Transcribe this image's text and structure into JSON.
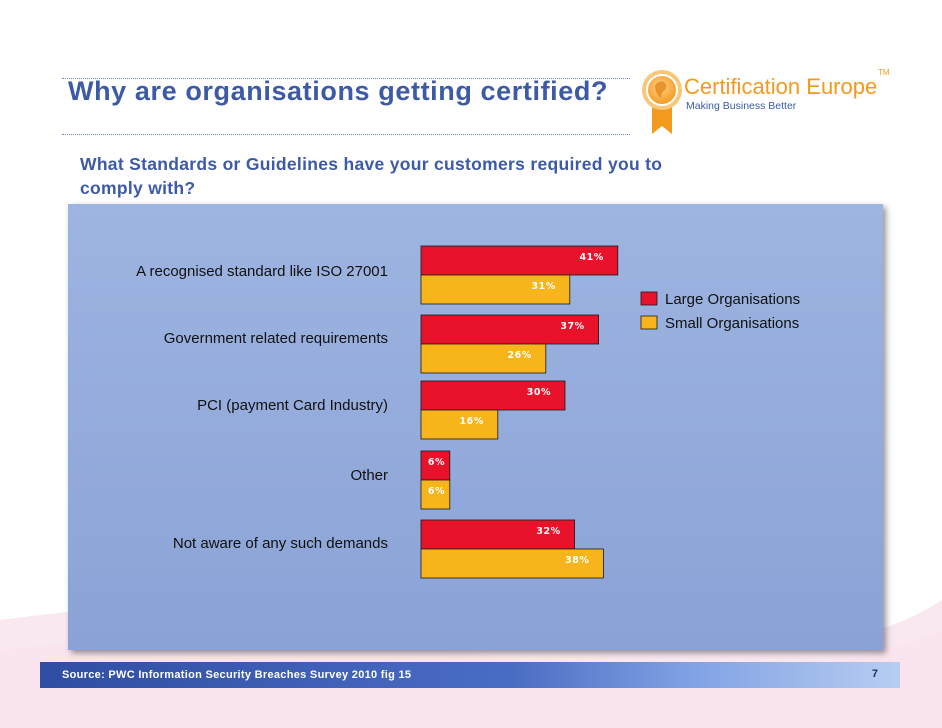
{
  "slide": {
    "title": "Why are organisations getting certified?",
    "subtitle": "What Standards or Guidelines have your customers required you to comply with?",
    "source": "Source: PWC Information Security Breaches Survey 2010 fig 15",
    "page_number": "7"
  },
  "logo": {
    "name": "Certification Europe",
    "tm": "TM",
    "tagline": "Making Business Better"
  },
  "colors": {
    "large": "#e8132b",
    "small": "#f8b41b",
    "panel": "#94acdc",
    "title": "#3d5aa6"
  },
  "chart_data": {
    "type": "bar",
    "orientation": "horizontal",
    "categories": [
      "A recognised standard like ISO 27001",
      "Government related requirements",
      "PCI (payment Card Industry)",
      "Other",
      "Not aware of any such demands"
    ],
    "series": [
      {
        "name": "Large Organisations",
        "values": [
          41,
          37,
          30,
          6,
          32
        ],
        "labels": [
          "41%",
          "37%",
          "30%",
          "6%",
          "32%"
        ]
      },
      {
        "name": "Small Organisations",
        "values": [
          31,
          26,
          16,
          6,
          38
        ],
        "labels": [
          "31%",
          "26%",
          "16%",
          "6%",
          "38%"
        ]
      }
    ],
    "legend_position": "right",
    "grid": false
  }
}
